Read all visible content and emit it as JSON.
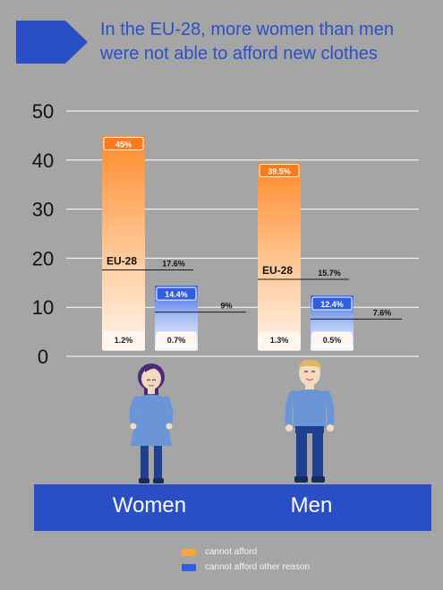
{
  "header": {
    "title": "In the EU-28, more women than men were not able to afford new clothes"
  },
  "colors": {
    "background": "#a5a5a5",
    "title_text": "#2b50c8",
    "band": "#2a4fc4",
    "orange": "#f7a43a",
    "blue": "#2f5fe0"
  },
  "icons": [
    "title-arrow-icon",
    "woman-figure-icon",
    "man-figure-icon"
  ],
  "chart_data": {
    "type": "bar",
    "categories": [
      "Women",
      "Men"
    ],
    "ylim": [
      0,
      50
    ],
    "yticks": [
      0,
      10,
      20,
      30,
      40,
      50
    ],
    "grid": true,
    "legend_position": "bottom",
    "series": [
      {
        "name": "cannot afford",
        "color": "#f7a43a",
        "values": [
          45,
          39.5
        ],
        "value_labels": [
          "45%",
          "39.5%"
        ],
        "min_labels": [
          "1.2%",
          "1.3%"
        ],
        "eu_average": [
          17.6,
          15.7
        ],
        "eu_average_labels": [
          "17.6%",
          "15.7%"
        ]
      },
      {
        "name": "cannot afford other reason",
        "color": "#2f5fe0",
        "values": [
          14.4,
          12.4
        ],
        "value_labels": [
          "14.4%",
          "12.4%"
        ],
        "min_labels": [
          "0.7%",
          "0.5%"
        ],
        "eu_average": [
          9,
          7.6
        ],
        "eu_average_labels": [
          "9%",
          "7.6%"
        ]
      }
    ],
    "eu_label": "EU-28"
  }
}
